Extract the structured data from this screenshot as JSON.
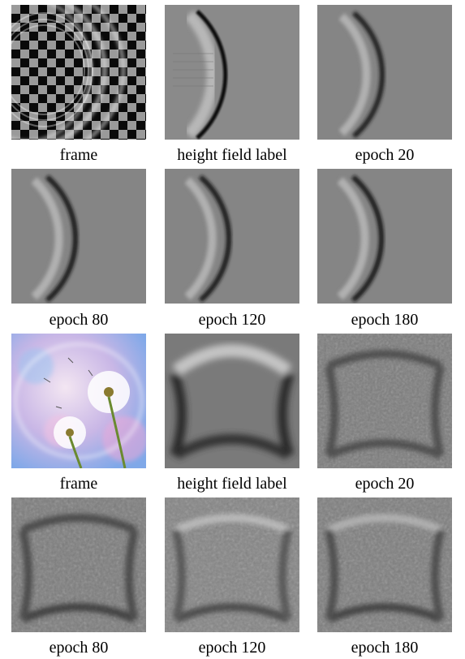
{
  "rows": [
    {
      "cells": [
        {
          "caption": "frame",
          "kind": "checker-frame"
        },
        {
          "caption": "height field label",
          "kind": "ring-label"
        },
        {
          "caption": "epoch 20",
          "kind": "ring-pred"
        }
      ]
    },
    {
      "cells": [
        {
          "caption": "epoch 80",
          "kind": "ring-pred"
        },
        {
          "caption": "epoch 120",
          "kind": "ring-pred"
        },
        {
          "caption": "epoch 180",
          "kind": "ring-pred"
        }
      ]
    },
    {
      "cells": [
        {
          "caption": "frame",
          "kind": "dandelion-frame"
        },
        {
          "caption": "height field label",
          "kind": "box-label"
        },
        {
          "caption": "epoch 20",
          "kind": "box-pred"
        }
      ]
    },
    {
      "cells": [
        {
          "caption": "epoch 80",
          "kind": "box-pred"
        },
        {
          "caption": "epoch 120",
          "kind": "box-pred"
        },
        {
          "caption": "epoch 180",
          "kind": "box-pred"
        }
      ]
    }
  ],
  "colors": {
    "background_gray": "#808080",
    "dark_wave": "#1a1a1a",
    "light_wave": "#c8c8c8"
  }
}
